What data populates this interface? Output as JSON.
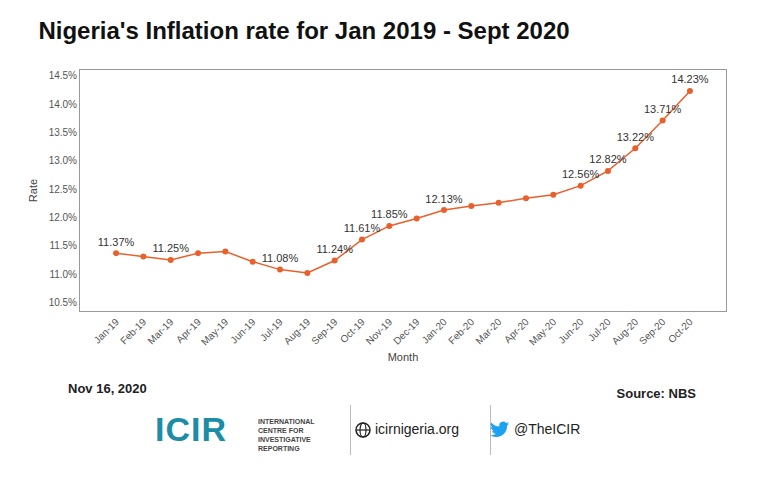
{
  "chart_data": {
    "type": "line",
    "title": "Nigeria's Inflation rate for Jan 2019 - Sept 2020",
    "x_label": "Month",
    "y_label": "Rate",
    "categories": [
      "Jan-19",
      "Feb-19",
      "Mar-19",
      "Apr-19",
      "May-19",
      "Jun-19",
      "Jul-19",
      "Aug-19",
      "Sep-19",
      "Oct-19",
      "Nov-19",
      "Dec-19",
      "Jan-20",
      "Feb-20",
      "Mar-20",
      "Apr-20",
      "May-20",
      "Jun-20",
      "Jul-20",
      "Aug-20",
      "Sep-20",
      "Oct-20"
    ],
    "values": [
      11.37,
      11.31,
      11.25,
      11.37,
      11.4,
      11.22,
      11.08,
      11.02,
      11.24,
      11.61,
      11.85,
      11.98,
      12.13,
      12.2,
      12.26,
      12.34,
      12.4,
      12.56,
      12.82,
      13.22,
      13.71,
      14.23
    ],
    "value_labels": [
      "11.37%",
      null,
      "11.25%",
      null,
      null,
      null,
      "11.08%",
      null,
      "11.24%",
      "11.61%",
      "11.85%",
      null,
      "12.13%",
      null,
      null,
      null,
      null,
      "12.56%",
      "12.82%",
      "13.22%",
      "13.71%",
      "14.23%"
    ],
    "color": "#e8602c",
    "marker": "circle",
    "ylim": [
      10.35,
      14.6
    ],
    "yticks": [
      {
        "value": 10.5,
        "label": "10.5%"
      },
      {
        "value": 11.0,
        "label": "11.0%"
      },
      {
        "value": 11.5,
        "label": "11.5%"
      },
      {
        "value": 12.0,
        "label": "12.0%"
      },
      {
        "value": 12.5,
        "label": "12.5%"
      },
      {
        "value": 13.0,
        "label": "13.0%"
      },
      {
        "value": 13.5,
        "label": "13.5%"
      },
      {
        "value": 14.0,
        "label": "14.0%"
      },
      {
        "value": 14.5,
        "label": "14.5%"
      }
    ],
    "grid": false
  },
  "footer": {
    "date": "Nov 16, 2020",
    "source": "Source: NBS",
    "logo": "ICIR",
    "organisation": "INTERNATIONAL CENTRE FOR INVESTIGATIVE REPORTING",
    "website": "icirnigeria.org",
    "twitter": "@TheICIR"
  }
}
